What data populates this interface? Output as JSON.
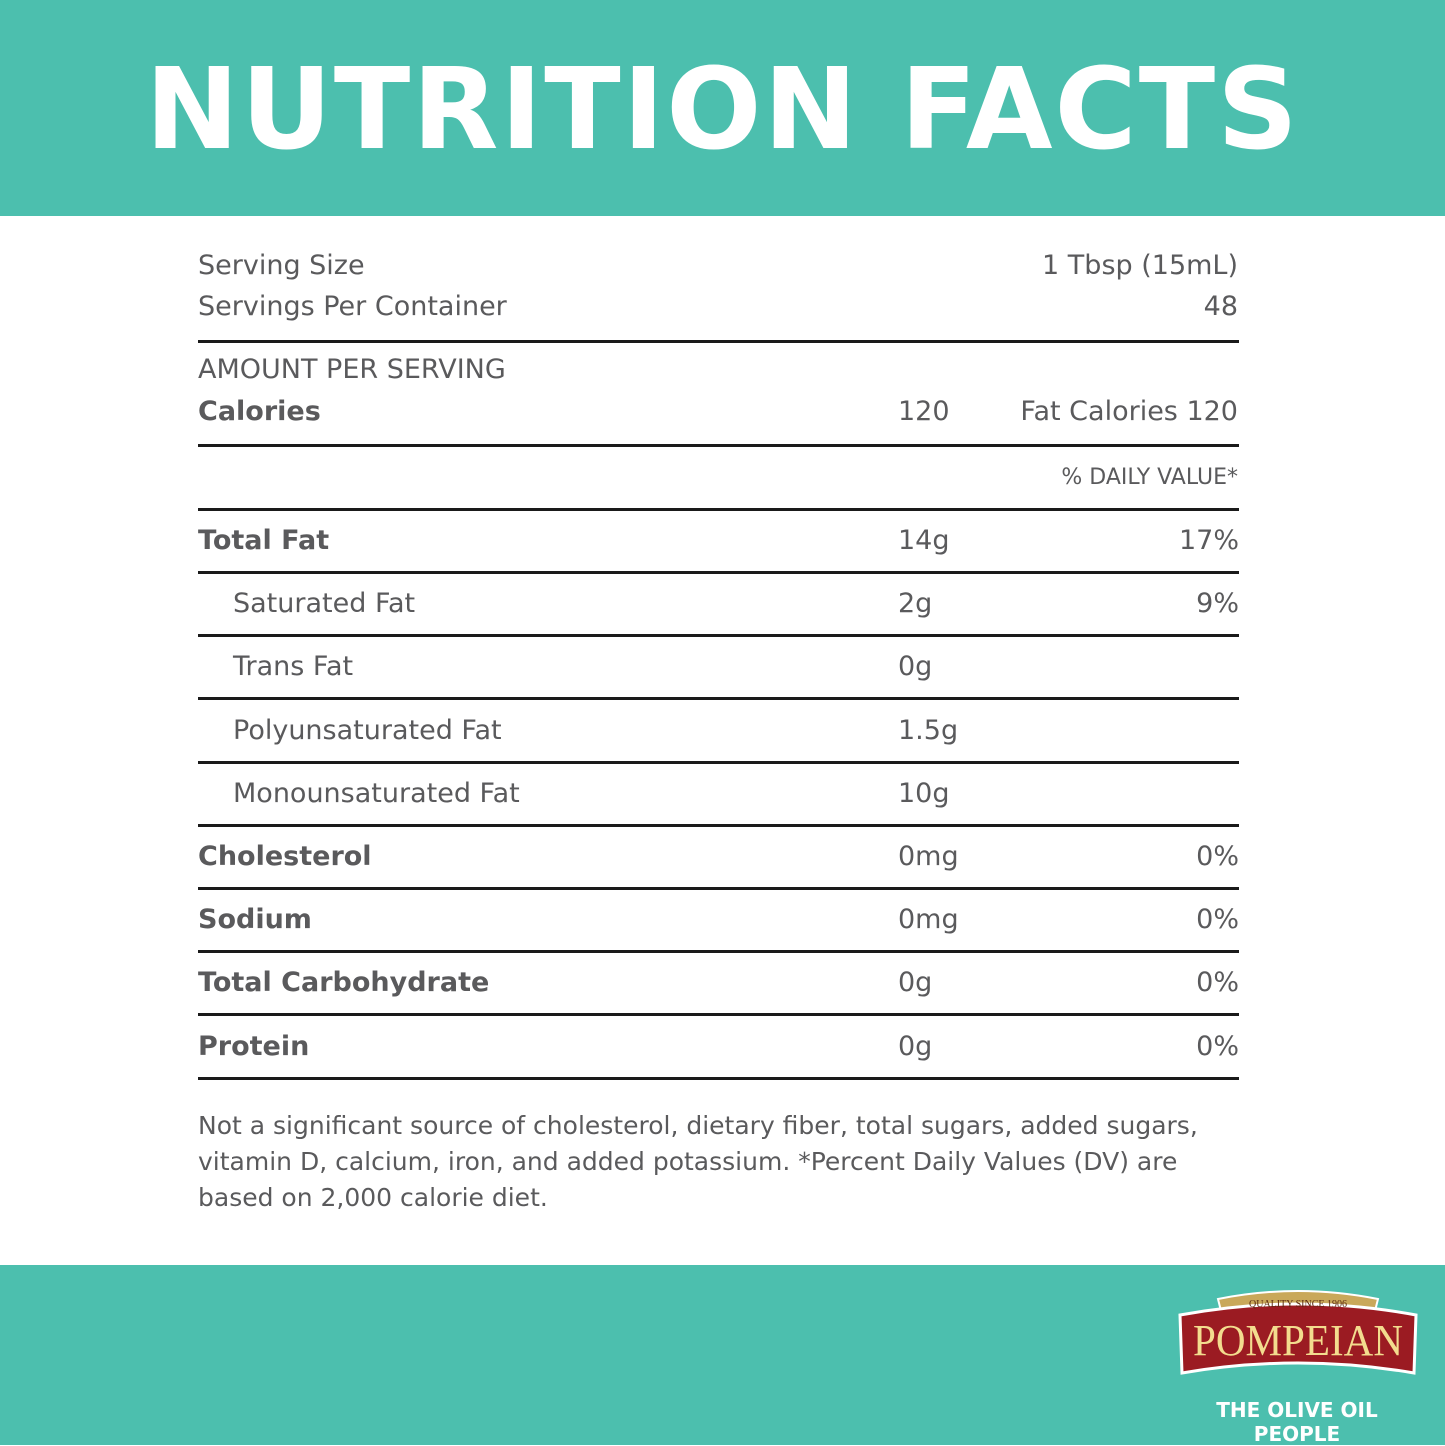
{
  "header": {
    "title": "NUTRITION FACTS"
  },
  "serving": {
    "size_label": "Serving Size",
    "size_value": "1 Tbsp (15mL)",
    "per_container_label": "Servings Per Container",
    "per_container_value": "48"
  },
  "calories": {
    "heading": "AMOUNT PER SERVING",
    "label": "Calories",
    "value": "120",
    "fat_calories": "Fat Calories 120"
  },
  "daily_value_header": "% DAILY VALUE*",
  "nutrients": [
    {
      "name": "Total Fat",
      "amount": "14g",
      "dv": "17%",
      "bold": true,
      "sub": false
    },
    {
      "name": "Saturated Fat",
      "amount": "2g",
      "dv": "9%",
      "bold": false,
      "sub": true
    },
    {
      "name": "Trans Fat",
      "amount": "0g",
      "dv": "",
      "bold": false,
      "sub": true
    },
    {
      "name": "Polyunsaturated Fat",
      "amount": "1.5g",
      "dv": "",
      "bold": false,
      "sub": true
    },
    {
      "name": "Monounsaturated Fat",
      "amount": "10g",
      "dv": "",
      "bold": false,
      "sub": true
    },
    {
      "name": "Cholesterol",
      "amount": "0mg",
      "dv": "0%",
      "bold": true,
      "sub": false
    },
    {
      "name": "Sodium",
      "amount": "0mg",
      "dv": "0%",
      "bold": true,
      "sub": false
    },
    {
      "name": "Total Carbohydrate",
      "amount": "0g",
      "dv": "0%",
      "bold": true,
      "sub": false
    },
    {
      "name": "Protein",
      "amount": "0g",
      "dv": "0%",
      "bold": true,
      "sub": false
    }
  ],
  "footnote": "Not a significant source of cholesterol, dietary fiber, total sugars, added sugars, vitamin D, calcium, iron, and added potassium. *Percent Daily Values (DV) are based on 2,000 calorie diet.",
  "brand": {
    "logo_text": "POMPEIAN",
    "logo_banner": "QUALITY SINCE 1906",
    "tagline": "THE OLIVE OIL PEOPLE"
  },
  "colors": {
    "teal": "#4cbfae",
    "text": "#5a5a5c",
    "logo_red": "#9b1b22",
    "logo_gold": "#f3dc8e"
  }
}
